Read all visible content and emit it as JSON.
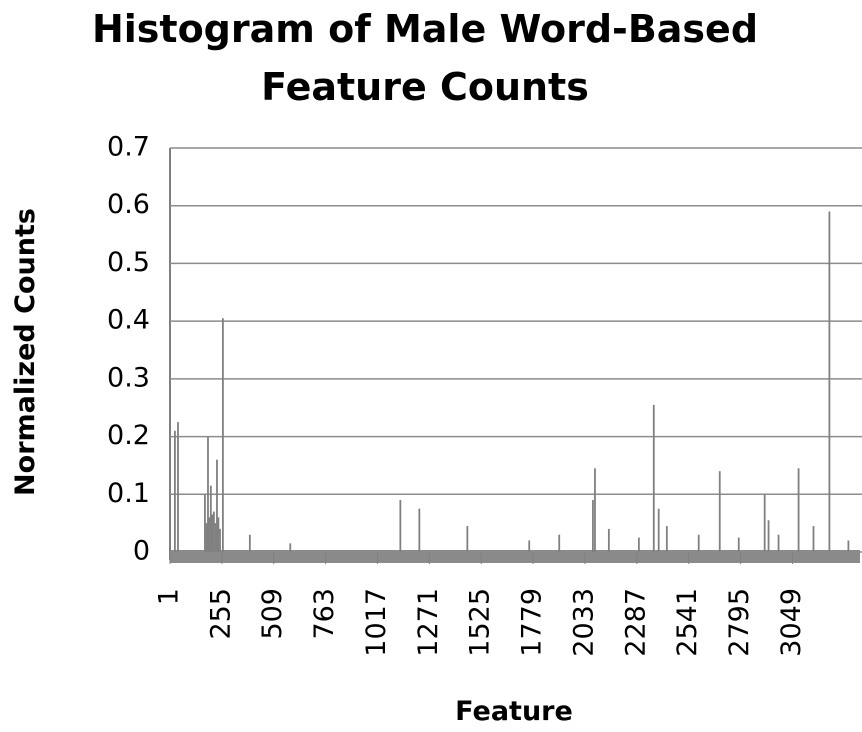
{
  "chart_data": {
    "type": "bar",
    "title": "Histogram of Male Word-Based Feature Counts",
    "x_label": "Feature",
    "y_label": "Normalized Counts",
    "x": [
      1,
      25,
      40,
      172,
      180,
      187,
      194,
      201,
      208,
      216,
      224,
      231,
      238,
      246,
      260,
      392,
      590,
      1129,
      1222,
      1457,
      1760,
      1907,
      2072,
      2082,
      2150,
      2297,
      2370,
      2394,
      2434,
      2590,
      2693,
      2786,
      2913,
      2932,
      2981,
      3079,
      3152,
      3230,
      3323
    ],
    "values": [
      0.02,
      0.21,
      0.225,
      0.1,
      0.05,
      0.2,
      0.06,
      0.115,
      0.065,
      0.07,
      0.05,
      0.16,
      0.06,
      0.04,
      0.405,
      0.03,
      0.015,
      0.09,
      0.075,
      0.045,
      0.02,
      0.03,
      0.09,
      0.145,
      0.04,
      0.025,
      0.255,
      0.075,
      0.045,
      0.03,
      0.14,
      0.025,
      0.1,
      0.055,
      0.03,
      0.145,
      0.045,
      0.59,
      0.02
    ],
    "color": "#808080",
    "xlim": [
      1,
      3370
    ],
    "xticks": [
      1,
      255,
      509,
      763,
      1017,
      1271,
      1525,
      1779,
      2033,
      2287,
      2541,
      2795,
      3049
    ],
    "ylim": [
      0,
      0.7
    ],
    "yticks": [
      0,
      0.1,
      0.2,
      0.3,
      0.4,
      0.5,
      0.6,
      0.7
    ],
    "grid": true
  }
}
